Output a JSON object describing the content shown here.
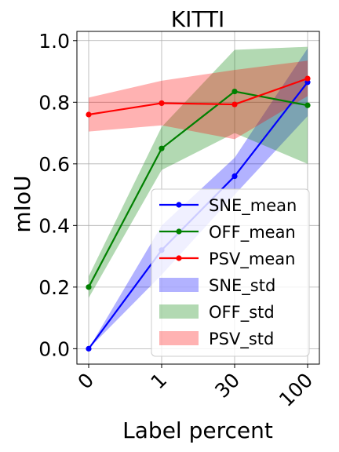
{
  "chart_data": {
    "type": "line",
    "title": "KITTI",
    "xlabel": "Label percent",
    "ylabel": "mIoU",
    "categories": [
      "0",
      "1",
      "30",
      "100"
    ],
    "ylim": [
      -0.05,
      1.03
    ],
    "yticks": [
      "0.0",
      "0.2",
      "0.4",
      "0.6",
      "0.8",
      "1.0"
    ],
    "grid": true,
    "legend_position": "lower-right",
    "series": [
      {
        "name": "SNE_mean",
        "color": "#0000ff",
        "values": [
          0.0,
          0.32,
          0.56,
          0.865
        ]
      },
      {
        "name": "OFF_mean",
        "color": "#008000",
        "values": [
          0.2,
          0.65,
          0.835,
          0.79
        ]
      },
      {
        "name": "PSV_mean",
        "color": "#ff0000",
        "values": [
          0.76,
          0.797,
          0.793,
          0.877
        ]
      }
    ],
    "bands": [
      {
        "name": "SNE_std",
        "color": "#0000ff",
        "opacity": 0.3,
        "lower": [
          0.0,
          0.24,
          0.5,
          0.755
        ],
        "upper": [
          0.0,
          0.4,
          0.62,
          0.975
        ]
      },
      {
        "name": "OFF_std",
        "color": "#008000",
        "opacity": 0.3,
        "lower": [
          0.165,
          0.58,
          0.7,
          0.6
        ],
        "upper": [
          0.235,
          0.72,
          0.97,
          0.98
        ]
      },
      {
        "name": "PSV_std",
        "color": "#ff0000",
        "opacity": 0.3,
        "lower": [
          0.705,
          0.725,
          0.68,
          0.82
        ],
        "upper": [
          0.815,
          0.87,
          0.905,
          0.935
        ]
      }
    ]
  }
}
